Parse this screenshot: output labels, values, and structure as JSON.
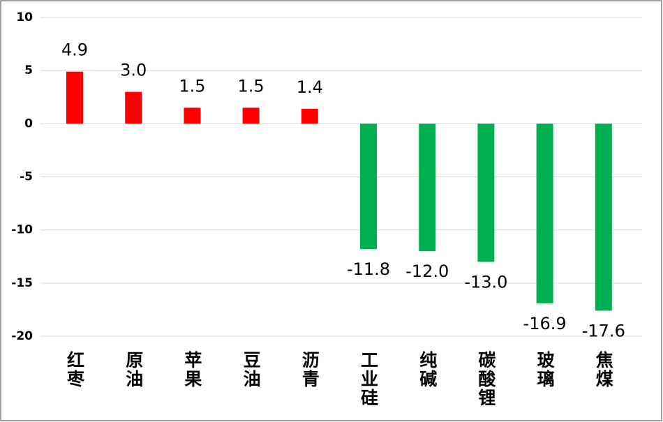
{
  "chart_data": {
    "type": "bar",
    "categories": [
      "红枣",
      "原油",
      "苹果",
      "豆油",
      "沥青",
      "工业硅",
      "纯碱",
      "碳酸锂",
      "玻璃",
      "焦煤"
    ],
    "values": [
      4.9,
      3.0,
      1.5,
      1.5,
      1.4,
      -11.8,
      -12.0,
      -13.0,
      -16.9,
      -17.6
    ],
    "value_labels": [
      "4.9",
      "3.0",
      "1.5",
      "1.5",
      "1.4",
      "-11.8",
      "-12.0",
      "-13.0",
      "-16.9",
      "-17.6"
    ],
    "colors": [
      "#ff0000",
      "#ff0000",
      "#ff0000",
      "#ff0000",
      "#ff0000",
      "#00b050",
      "#00b050",
      "#00b050",
      "#00b050",
      "#00b050"
    ],
    "ylim": [
      -20,
      10
    ],
    "yticks": [
      -20,
      -15,
      -10,
      -5,
      0,
      5,
      10
    ],
    "grid": true
  }
}
